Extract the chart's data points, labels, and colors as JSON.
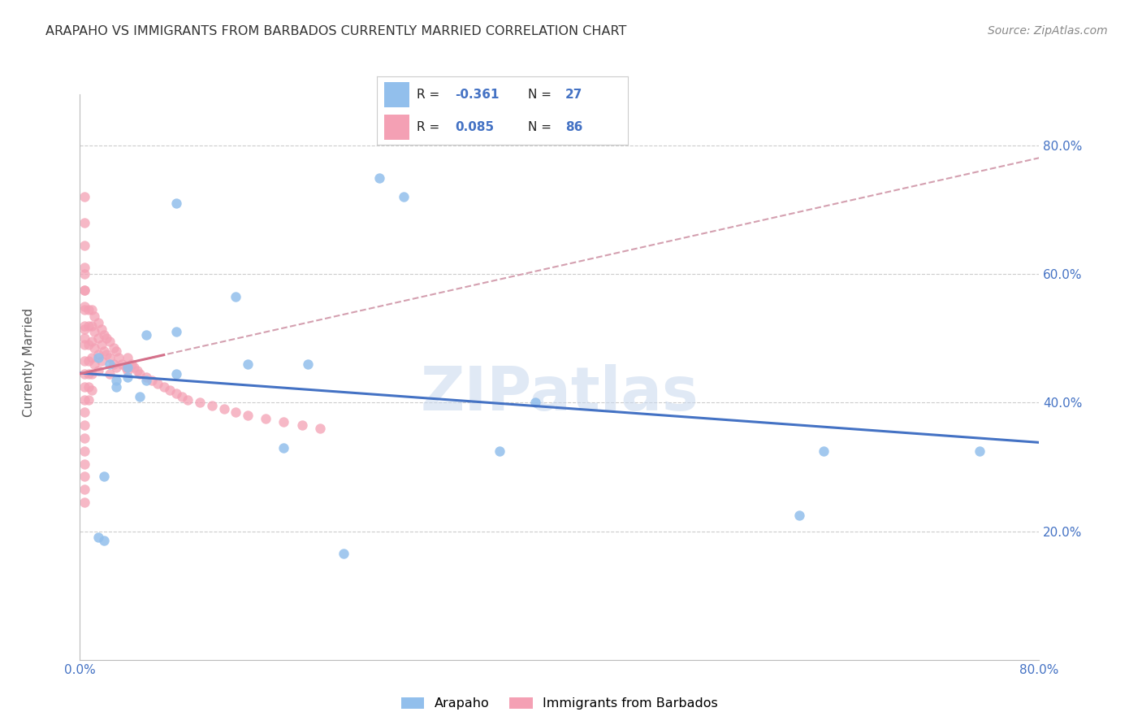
{
  "title": "ARAPAHO VS IMMIGRANTS FROM BARBADOS CURRENTLY MARRIED CORRELATION CHART",
  "source": "Source: ZipAtlas.com",
  "ylabel_label": "Currently Married",
  "x_min": 0.0,
  "x_max": 0.8,
  "y_min": 0.0,
  "y_max": 0.88,
  "y_ticks": [
    0.2,
    0.4,
    0.6,
    0.8
  ],
  "y_tick_labels": [
    "20.0%",
    "40.0%",
    "60.0%",
    "80.0%"
  ],
  "x_tick_left_label": "0.0%",
  "x_tick_right_label": "80.0%",
  "arapaho_color": "#92BFEC",
  "barbados_color": "#F4A0B4",
  "arapaho_R": -0.361,
  "arapaho_N": 27,
  "barbados_R": 0.085,
  "barbados_N": 86,
  "trend_arapaho_color": "#4472C4",
  "trend_barbados_solid_color": "#D4708A",
  "trend_barbados_dashed_color": "#D4A0B0",
  "watermark": "ZIPatlas",
  "arapaho_x": [
    0.015,
    0.08,
    0.13,
    0.02,
    0.14,
    0.08,
    0.04,
    0.015,
    0.03,
    0.055,
    0.055,
    0.08,
    0.05,
    0.62,
    0.75,
    0.6,
    0.38,
    0.22,
    0.03,
    0.17,
    0.19,
    0.025,
    0.02,
    0.04,
    0.35,
    0.25,
    0.27
  ],
  "arapaho_y": [
    0.19,
    0.71,
    0.565,
    0.185,
    0.46,
    0.445,
    0.455,
    0.47,
    0.435,
    0.435,
    0.505,
    0.51,
    0.41,
    0.325,
    0.325,
    0.225,
    0.4,
    0.165,
    0.425,
    0.33,
    0.46,
    0.46,
    0.285,
    0.44,
    0.325,
    0.75,
    0.72
  ],
  "barbados_x": [
    0.004,
    0.004,
    0.004,
    0.004,
    0.004,
    0.004,
    0.004,
    0.004,
    0.004,
    0.004,
    0.004,
    0.004,
    0.004,
    0.004,
    0.004,
    0.004,
    0.004,
    0.004,
    0.004,
    0.004,
    0.004,
    0.004,
    0.004,
    0.007,
    0.007,
    0.007,
    0.007,
    0.007,
    0.007,
    0.007,
    0.01,
    0.01,
    0.01,
    0.01,
    0.01,
    0.01,
    0.012,
    0.012,
    0.012,
    0.012,
    0.015,
    0.015,
    0.015,
    0.015,
    0.018,
    0.018,
    0.018,
    0.02,
    0.02,
    0.022,
    0.022,
    0.025,
    0.025,
    0.025,
    0.028,
    0.028,
    0.03,
    0.03,
    0.032,
    0.035,
    0.038,
    0.04,
    0.04,
    0.043,
    0.045,
    0.048,
    0.05,
    0.055,
    0.06,
    0.065,
    0.07,
    0.075,
    0.08,
    0.085,
    0.09,
    0.1,
    0.11,
    0.12,
    0.13,
    0.14,
    0.155,
    0.17,
    0.185,
    0.2,
    0.004,
    0.004
  ],
  "barbados_y": [
    0.72,
    0.68,
    0.645,
    0.61,
    0.575,
    0.545,
    0.515,
    0.49,
    0.465,
    0.445,
    0.425,
    0.405,
    0.385,
    0.365,
    0.345,
    0.325,
    0.305,
    0.285,
    0.265,
    0.245,
    0.5,
    0.52,
    0.55,
    0.545,
    0.52,
    0.49,
    0.465,
    0.445,
    0.425,
    0.405,
    0.545,
    0.52,
    0.495,
    0.47,
    0.445,
    0.42,
    0.535,
    0.51,
    0.485,
    0.46,
    0.525,
    0.5,
    0.475,
    0.45,
    0.515,
    0.49,
    0.465,
    0.505,
    0.48,
    0.5,
    0.475,
    0.495,
    0.47,
    0.445,
    0.485,
    0.46,
    0.48,
    0.455,
    0.47,
    0.46,
    0.455,
    0.45,
    0.47,
    0.46,
    0.455,
    0.45,
    0.445,
    0.44,
    0.435,
    0.43,
    0.425,
    0.42,
    0.415,
    0.41,
    0.405,
    0.4,
    0.395,
    0.39,
    0.385,
    0.38,
    0.375,
    0.37,
    0.365,
    0.36,
    0.575,
    0.6
  ]
}
